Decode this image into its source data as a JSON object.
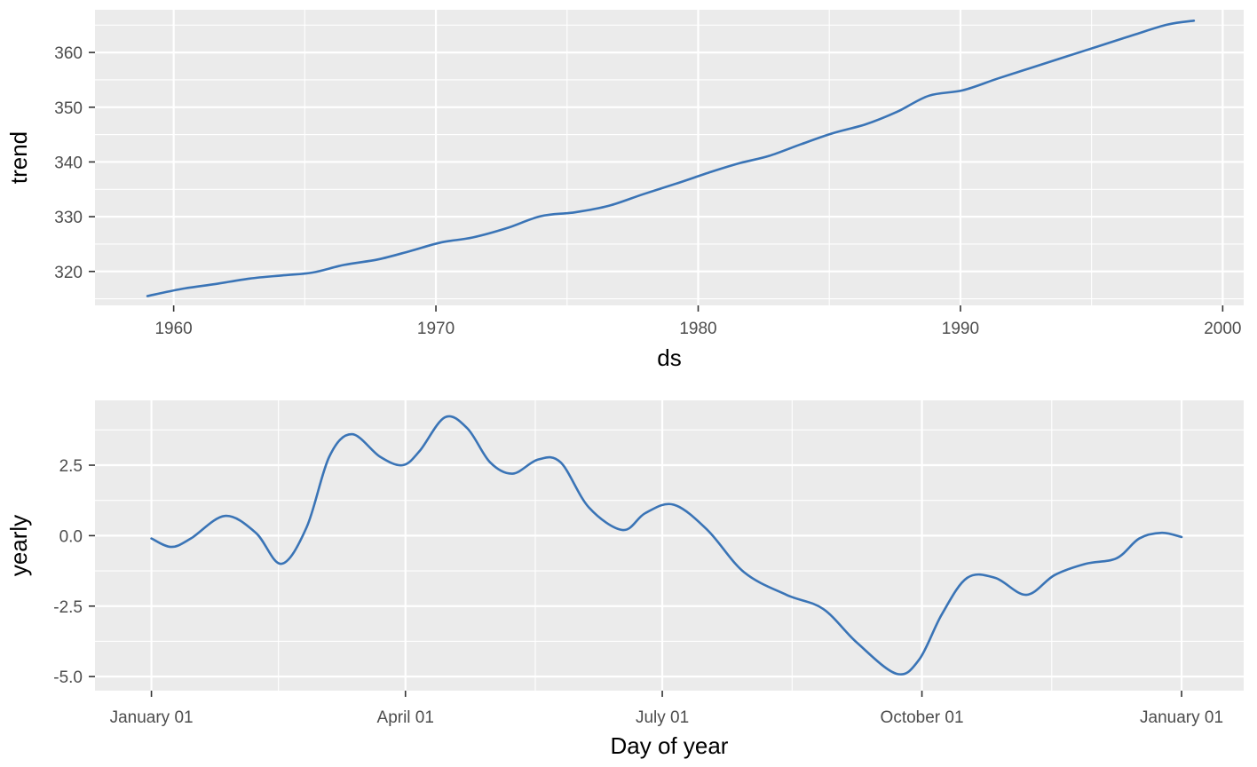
{
  "chart_data": [
    {
      "type": "line",
      "xlabel": "ds",
      "ylabel": "trend",
      "xlim": [
        1957.0,
        2000.8
      ],
      "ylim": [
        313.8,
        367.8
      ],
      "x_ticks": [
        1960,
        1970,
        1980,
        1990,
        2000
      ],
      "x_tick_labels": [
        "1960",
        "1970",
        "1980",
        "1990",
        "2000"
      ],
      "y_ticks": [
        320,
        330,
        340,
        350,
        360
      ],
      "y_tick_labels": [
        "320",
        "330",
        "340",
        "350",
        "360"
      ],
      "grid": true,
      "color": "#3a74b6",
      "series": [
        {
          "x": [
            1959.0,
            1960.3,
            1961.6,
            1962.9,
            1964.2,
            1965.3,
            1966.5,
            1967.8,
            1969.0,
            1970.2,
            1971.4,
            1972.7,
            1974.0,
            1975.3,
            1976.6,
            1977.9,
            1979.2,
            1980.5,
            1981.6,
            1982.7,
            1983.9,
            1985.1,
            1986.4,
            1987.6,
            1988.8,
            1990.1,
            1991.4,
            1992.7,
            1994.0,
            1995.3,
            1996.6,
            1997.9,
            1998.9
          ],
          "y": [
            315.5,
            316.8,
            317.7,
            318.7,
            319.3,
            319.8,
            321.2,
            322.2,
            323.7,
            325.3,
            326.2,
            327.9,
            330.1,
            330.8,
            332.0,
            334.1,
            336.1,
            338.2,
            339.8,
            341.1,
            343.2,
            345.2,
            346.9,
            349.2,
            352.1,
            353.1,
            355.2,
            357.2,
            359.2,
            361.2,
            363.2,
            365.1,
            365.8
          ]
        }
      ]
    },
    {
      "type": "line",
      "xlabel": "Day of year",
      "ylabel": "yearly",
      "xlim": [
        -20,
        387
      ],
      "ylim": [
        -5.5,
        4.8
      ],
      "x_ticks": [
        0,
        90,
        181,
        273,
        365
      ],
      "x_tick_labels": [
        "January 01",
        "April 01",
        "July 01",
        "October 01",
        "January 01"
      ],
      "x_minor_ticks": [
        45,
        136,
        227,
        319
      ],
      "y_ticks": [
        -5.0,
        -2.5,
        0.0,
        2.5
      ],
      "y_tick_labels": [
        "-5.0",
        "-2.5",
        "0.0",
        "2.5"
      ],
      "y_minor_ticks": [
        -3.75,
        -1.25,
        1.25,
        3.75
      ],
      "grid": true,
      "color": "#3a74b6",
      "series": [
        {
          "x": [
            0,
            7,
            14,
            26,
            37,
            46,
            55,
            63,
            71,
            81,
            89,
            95,
            104,
            112,
            120,
            128,
            137,
            145,
            155,
            167,
            175,
            185,
            197,
            210,
            225,
            238,
            250,
            264,
            272,
            280,
            289,
            299,
            310,
            320,
            331,
            342,
            350,
            358,
            365
          ],
          "y": [
            -0.1,
            -0.4,
            -0.1,
            0.7,
            0.1,
            -1.0,
            0.3,
            2.8,
            3.6,
            2.8,
            2.5,
            3.0,
            4.2,
            3.8,
            2.6,
            2.2,
            2.7,
            2.6,
            1.0,
            0.2,
            0.8,
            1.1,
            0.2,
            -1.3,
            -2.1,
            -2.6,
            -3.8,
            -4.9,
            -4.4,
            -2.8,
            -1.5,
            -1.5,
            -2.1,
            -1.4,
            -1.0,
            -0.8,
            -0.1,
            0.1,
            -0.05
          ]
        }
      ]
    }
  ]
}
